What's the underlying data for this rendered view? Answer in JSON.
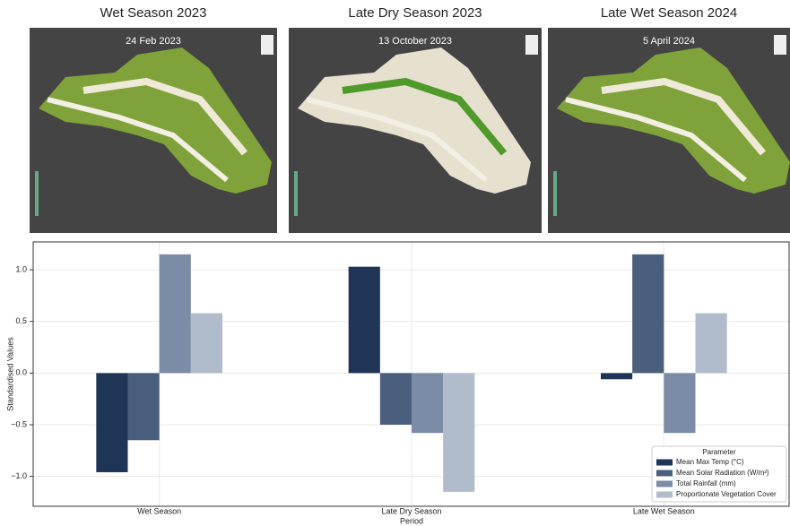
{
  "panels": [
    {
      "title": "Wet Season 2023",
      "date": "24 Feb 2023"
    },
    {
      "title": "Late Dry Season 2023",
      "date": "13 October 2023"
    },
    {
      "title": "Late Wet Season 2024",
      "date": "5 April 2024"
    }
  ],
  "chart_data": {
    "type": "bar",
    "y_label": "Standardised Values",
    "x_label": "Period",
    "categories": [
      "Wet Season",
      "Late Dry Season",
      "Late Wet Season"
    ],
    "series": [
      {
        "name": "Mean Max Temp (°C)",
        "color": "#1f3557",
        "values": [
          -0.96,
          1.03,
          -0.06
        ]
      },
      {
        "name": "Mean Solar Radiation (W/m²)",
        "color": "#4a5f7e",
        "values": [
          -0.65,
          -0.5,
          1.15
        ]
      },
      {
        "name": "Total Rainfall (mm)",
        "color": "#7b8ca6",
        "values": [
          1.15,
          -0.58,
          -0.58
        ]
      },
      {
        "name": "Proportionate Vegetation Cover",
        "color": "#b0bccb",
        "values": [
          0.58,
          -1.15,
          0.58
        ]
      }
    ],
    "ylim": [
      -1.29,
      1.27
    ],
    "yticks": [
      {
        "value": -1,
        "label": "−1.0"
      },
      {
        "value": -0.5,
        "label": "−0.5"
      },
      {
        "value": 0,
        "label": "0.0"
      },
      {
        "value": 0.5,
        "label": "0.5"
      },
      {
        "value": 1,
        "label": "1.0"
      }
    ],
    "grid": true,
    "legend_title": "Parameter",
    "legend": "lower right"
  }
}
